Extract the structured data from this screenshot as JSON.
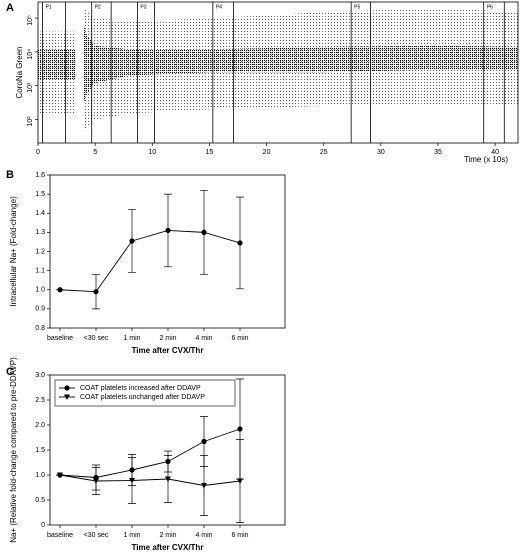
{
  "chart_data": [
    {
      "type": "density",
      "panel_label": "A",
      "x_label": "Time (x 10s)",
      "y_label": "CoroNa Green",
      "log_y": true,
      "xlim": [
        0,
        42
      ],
      "xticks": [
        0,
        5,
        10,
        15,
        20,
        25,
        30,
        35,
        40
      ],
      "ylim": [
        20,
        300000
      ],
      "yticks": [
        {
          "value": 100,
          "label": "10²"
        },
        {
          "value": 1000,
          "label": "10³"
        },
        {
          "value": 10000,
          "label": "10⁴"
        },
        {
          "value": 100000,
          "label": "10⁵"
        }
      ],
      "x": [
        0,
        1,
        2,
        3.3,
        3.7,
        4,
        4.3,
        5,
        8,
        15,
        25,
        35,
        42
      ],
      "bands": [
        {
          "lower": [
            150,
            150,
            150,
            150,
            null,
            40,
            60,
            100,
            150,
            200,
            250,
            250,
            250
          ],
          "upper": [
            40000,
            40000,
            40000,
            40000,
            null,
            250000,
            150000,
            100000,
            80000,
            100000,
            150000,
            200000,
            150000
          ]
        },
        {
          "lower": [
            1500,
            1500,
            1500,
            1500,
            null,
            300,
            600,
            1200,
            2000,
            2500,
            2500,
            3000,
            3000
          ],
          "upper": [
            12000,
            12000,
            12000,
            12000,
            null,
            60000,
            30000,
            15000,
            12000,
            12000,
            14000,
            15000,
            14000
          ]
        }
      ],
      "color": "#000000",
      "regions": [
        {
          "label": "P1",
          "start": 0.4,
          "end": 2.4
        },
        {
          "label": "P2",
          "start": 4.7,
          "end": 6.4
        },
        {
          "label": "P3",
          "start": 8.7,
          "end": 10.2
        },
        {
          "label": "P4",
          "start": 15.3,
          "end": 17.1
        },
        {
          "label": "P5",
          "start": 27.4,
          "end": 29.1
        },
        {
          "label": "P6",
          "start": 39,
          "end": 40.8
        }
      ]
    },
    {
      "type": "line",
      "panel_label": "B",
      "x_label": "Time after CVX/Thr",
      "y_label": "Intracellular Na+   (Fold-change)",
      "categories": [
        "baseline",
        "<30 sec",
        "1 min",
        "2 min",
        "4 min",
        "6 min"
      ],
      "series": [
        {
          "color": "#000000",
          "marker": "circle",
          "values": [
            1.0,
            0.99,
            1.255,
            1.31,
            1.3,
            1.245
          ],
          "errors": [
            0,
            0.09,
            0.165,
            0.19,
            0.22,
            0.24
          ]
        }
      ],
      "ylim": [
        0.8,
        1.6
      ],
      "yticks": [
        0.8,
        0.9,
        {
          "value": 1,
          "label": "1.0"
        },
        1.1,
        1.2,
        1.3,
        1.4,
        1.5,
        1.6
      ]
    },
    {
      "type": "line",
      "panel_label": "C",
      "x_label": "Time after CVX/Thr",
      "y_label": "Na+   (Relative fold-change compared to pre-DDAVP)",
      "categories": [
        "baseline",
        "<30 sec",
        "1 min",
        "2 min",
        "4 min",
        "6 min"
      ],
      "legend": "upper-left",
      "series": [
        {
          "name": "COAT platelets increased after DDAVP",
          "color": "#000000",
          "marker": "circle",
          "values": [
            1.0,
            0.95,
            1.1,
            1.27,
            1.67,
            1.92
          ],
          "errors": [
            0,
            0.25,
            0.31,
            0.21,
            0.5,
            1.0
          ]
        },
        {
          "name": "COAT platelets unchanged after DDAVP",
          "color": "#000000",
          "marker": "triangle",
          "values": [
            1.0,
            0.88,
            0.89,
            0.92,
            0.79,
            0.88
          ],
          "errors": [
            0,
            0.27,
            0.46,
            0.47,
            0.6,
            0.83
          ]
        }
      ],
      "ylim": [
        0,
        3
      ],
      "yticks": [
        0,
        0.5,
        {
          "value": 1,
          "label": "1.0"
        },
        {
          "value": 1.5,
          "label": "1.5"
        },
        {
          "value": 2,
          "label": "2.0"
        },
        {
          "value": 2.5,
          "label": "2.5"
        },
        {
          "value": 3,
          "label": "3.0"
        }
      ]
    }
  ]
}
